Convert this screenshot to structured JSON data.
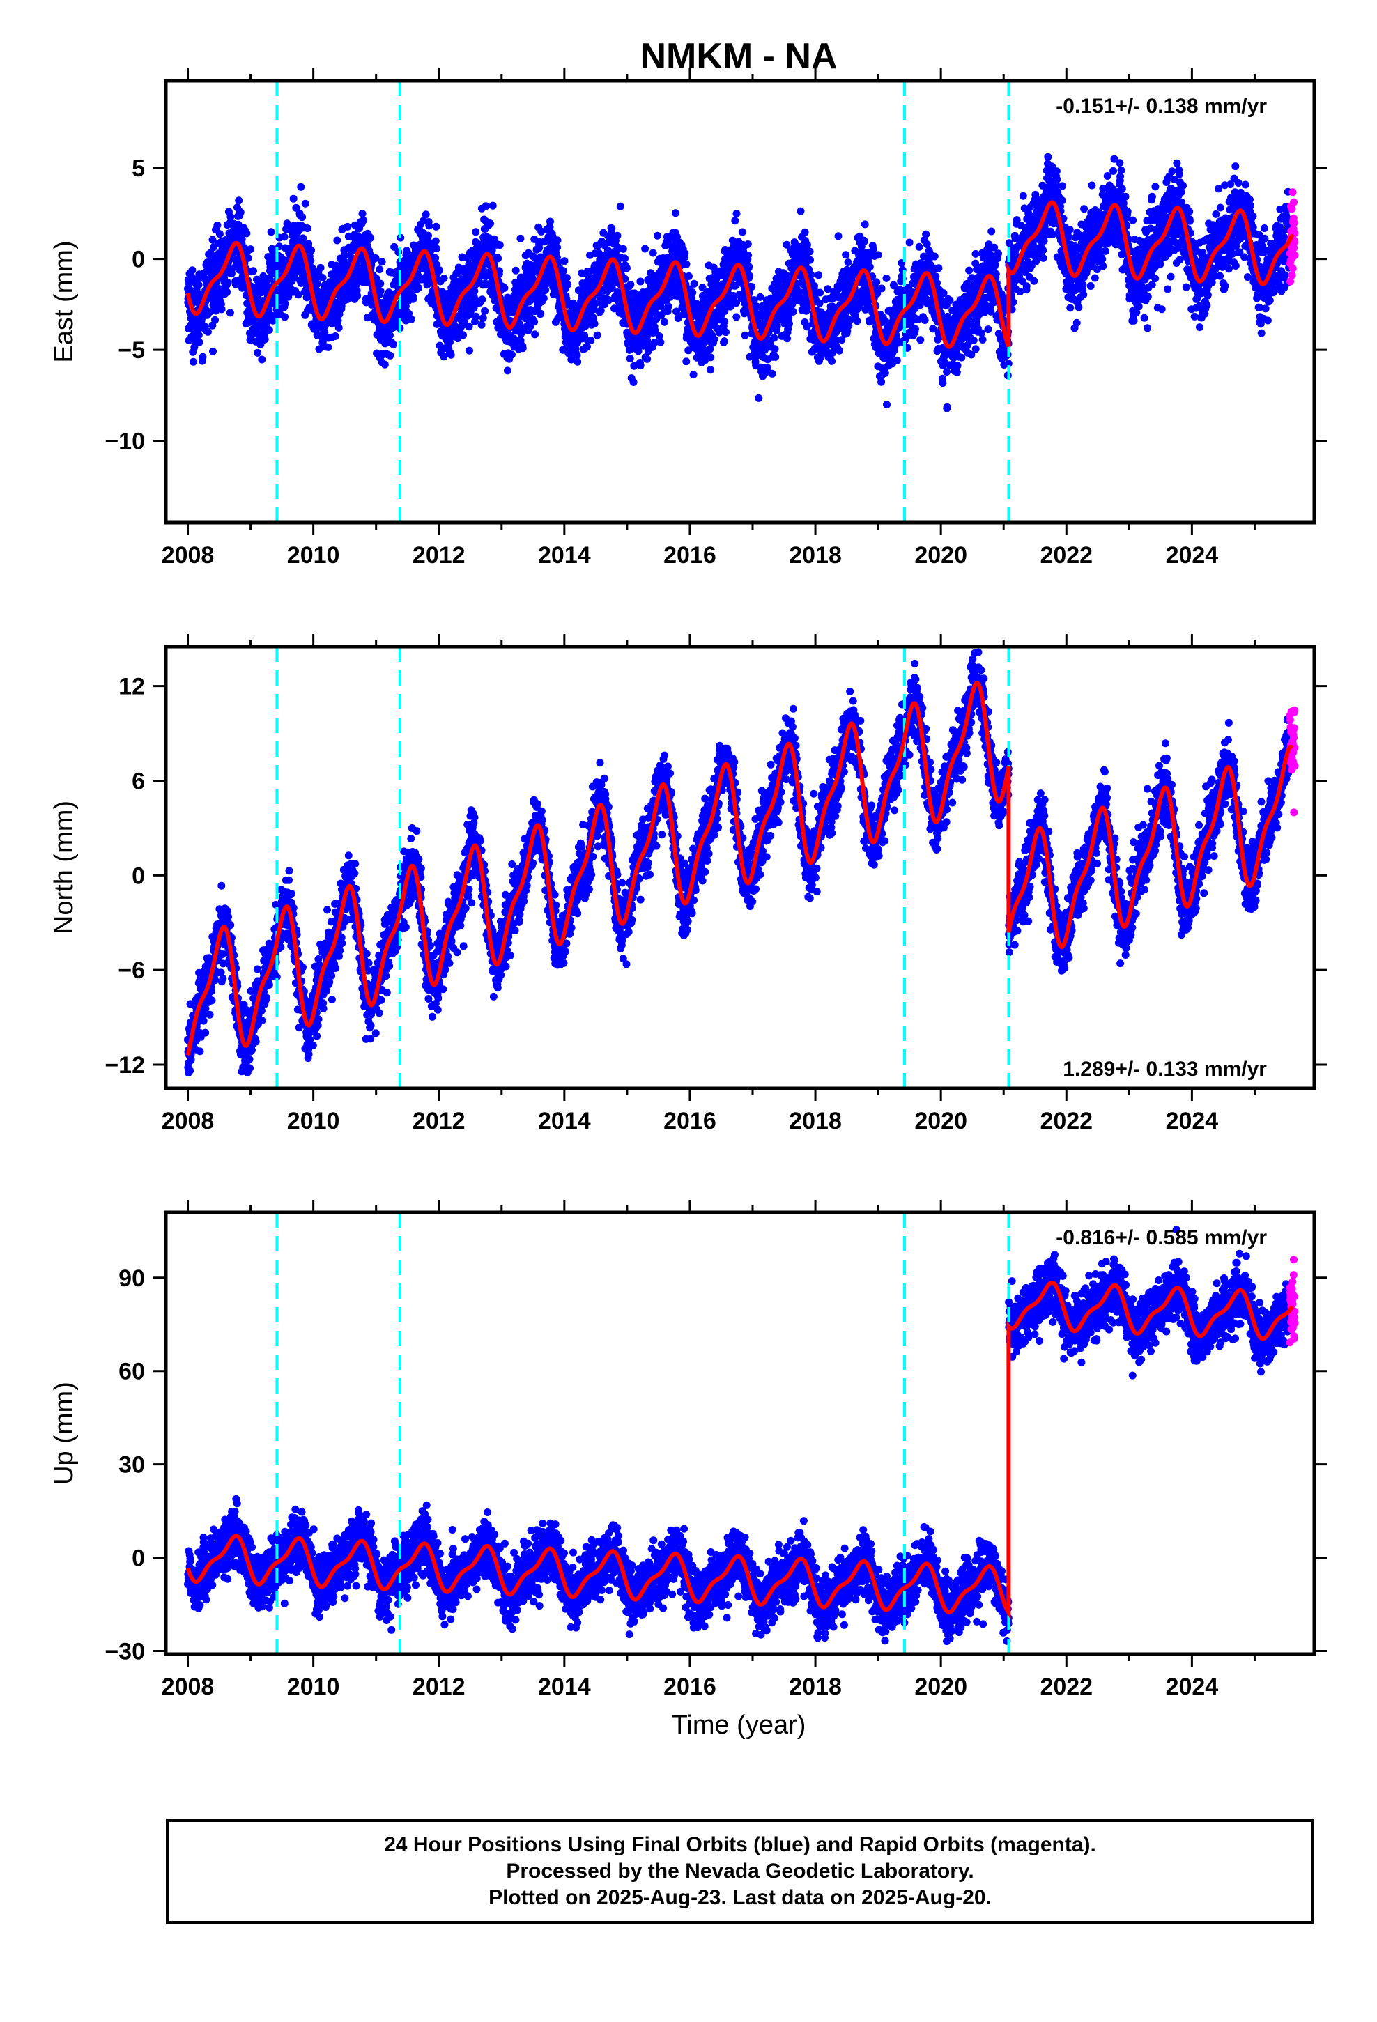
{
  "title": "NMKM - NA",
  "xlabel": "Time (year)",
  "footer": {
    "line1": "24 Hour Positions Using Final Orbits (blue) and Rapid Orbits (magenta).",
    "line2": "Processed by the Nevada Geodetic Laboratory.",
    "line3": "Plotted on 2025-Aug-23. Last data on 2025-Aug-20."
  },
  "colors": {
    "final": "#0000ff",
    "rapid": "#ff00ff",
    "model": "#ff0000",
    "equipment_change": "#00ffff",
    "frame": "#000000"
  },
  "chart_data": [
    {
      "type": "scatter",
      "name": "East",
      "ylabel": "East (mm)",
      "xlim": [
        2007.65,
        2025.95
      ],
      "ylim": [
        -14.5,
        9.8
      ],
      "yticks": [
        -10,
        -5,
        0,
        5
      ],
      "xticks": [
        2008,
        2010,
        2012,
        2014,
        2016,
        2018,
        2020,
        2022,
        2024
      ],
      "rate_text": "-0.151+/- 0.138 mm/yr",
      "rate_position": "top-right",
      "offset_lines": [
        2009.42,
        2011.38,
        2019.42,
        2021.08
      ],
      "model": {
        "x0": 2008.0,
        "x1": 2025.6,
        "trend": -0.151,
        "intercept": -1.0,
        "amplitude": 1.7,
        "phase_year": 0.7,
        "steps": [
          {
            "x": 2021.08,
            "dy": 4.2
          }
        ]
      },
      "scatter_sigma": 1.1,
      "final_end": 2025.55,
      "rapid_range": [
        2025.56,
        2025.64
      ]
    },
    {
      "type": "scatter",
      "name": "North",
      "ylabel": "North (mm)",
      "xlim": [
        2007.65,
        2025.95
      ],
      "ylim": [
        -13.5,
        14.5
      ],
      "yticks": [
        -12,
        -6,
        0,
        6,
        12
      ],
      "xticks": [
        2008,
        2010,
        2012,
        2014,
        2016,
        2018,
        2020,
        2022,
        2024
      ],
      "rate_text": "1.289+/- 0.133 mm/yr",
      "rate_position": "bottom-right",
      "offset_lines": [
        2009.42,
        2011.38,
        2019.42,
        2021.08
      ],
      "model": {
        "x0": 2008.0,
        "x1": 2025.6,
        "trend": 1.289,
        "intercept": -8.0,
        "amplitude": 3.4,
        "phase_year": 0.5,
        "steps": [
          {
            "x": 2021.08,
            "dy": -10.5
          }
        ]
      },
      "scatter_sigma": 1.0,
      "final_end": 2025.55,
      "rapid_range": [
        2025.56,
        2025.64
      ]
    },
    {
      "type": "scatter",
      "name": "Up",
      "ylabel": "Up (mm)",
      "xlim": [
        2007.65,
        2025.95
      ],
      "ylim": [
        -31.0,
        111.0
      ],
      "yticks": [
        -30,
        0,
        30,
        60,
        90
      ],
      "xticks": [
        2008,
        2010,
        2012,
        2014,
        2016,
        2018,
        2020,
        2022,
        2024
      ],
      "rate_text": "-0.816+/- 0.585 mm/yr",
      "rate_position": "top-right",
      "offset_lines": [
        2009.42,
        2011.38,
        2019.42,
        2021.08
      ],
      "model": {
        "x0": 2008.0,
        "x1": 2025.6,
        "trend": -0.816,
        "intercept": 0.0,
        "amplitude": 6.5,
        "phase_year": 0.7,
        "steps": [
          {
            "x": 2021.08,
            "dy": 92.0
          }
        ]
      },
      "scatter_sigma": 4.5,
      "final_end": 2025.55,
      "rapid_range": [
        2025.56,
        2025.64
      ]
    }
  ]
}
